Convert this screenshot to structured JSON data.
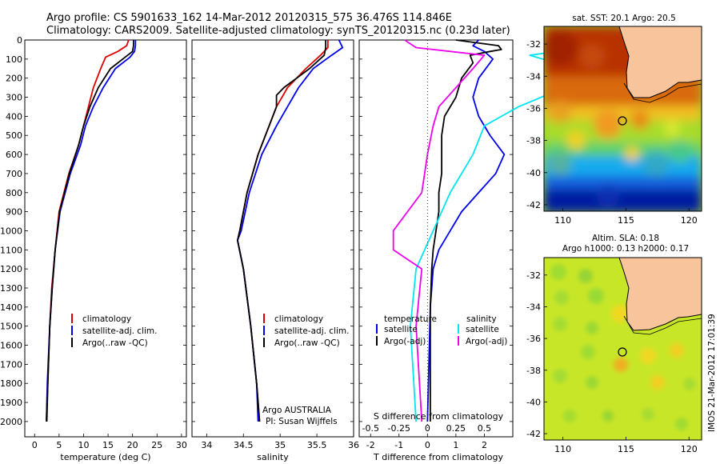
{
  "header": {
    "line1": "Argo profile: CS 5901633_162 14-Mar-2012 20120315_575 36.476S 114.846E",
    "line2": "Climatology: CARS2009. Satellite-adjusted climatology: synTS_20120315.nc (0.23d later)"
  },
  "colors": {
    "climatology": "#dd0000",
    "satellite": "#0000ee",
    "argo": "#000000",
    "sat_salinity": "#00e5ee",
    "argo_salinity": "#ee00ee"
  },
  "chart_data": [
    {
      "type": "line",
      "xlabel": "temperature (deg C)",
      "ylabel": "",
      "xlim": [
        -2,
        31
      ],
      "ylim": [
        2080,
        0
      ],
      "xticks": [
        "0",
        "5",
        "10",
        "15",
        "20",
        "25",
        "30"
      ],
      "yticks": [
        "0",
        "100",
        "200",
        "300",
        "400",
        "500",
        "600",
        "700",
        "800",
        "900",
        "1000",
        "1100",
        "1200",
        "1300",
        "1400",
        "1500",
        "1600",
        "1700",
        "1800",
        "1900",
        "2000"
      ],
      "legend": [
        "climatology",
        "satellite-adj. clim.",
        "Argo(..raw -QC)"
      ],
      "series": [
        {
          "name": "climatology",
          "depth": [
            0,
            30,
            60,
            90,
            150,
            250,
            350,
            450,
            550,
            700,
            900,
            1100,
            1300,
            1500,
            1800,
            2000
          ],
          "values": [
            19.2,
            18.8,
            17,
            14.5,
            13.5,
            12,
            11,
            10,
            9,
            7,
            5,
            4.2,
            3.5,
            3.1,
            2.7,
            2.4
          ]
        },
        {
          "name": "satellite-adj. clim.",
          "depth": [
            0,
            30,
            60,
            90,
            150,
            250,
            350,
            450,
            550,
            700,
            900,
            1100,
            1300,
            1500,
            1800,
            2000
          ],
          "values": [
            20.6,
            20.6,
            20.4,
            19.5,
            16.5,
            14,
            12,
            10.4,
            9.4,
            7.3,
            5.2,
            4.2,
            3.6,
            3.1,
            2.6,
            2.4
          ]
        },
        {
          "name": "Argo(..raw -QC)",
          "depth": [
            0,
            30,
            60,
            90,
            150,
            250,
            350,
            450,
            550,
            700,
            900,
            1100,
            1300,
            1500,
            1800,
            2000
          ],
          "values": [
            20.2,
            20.2,
            20,
            18.5,
            15.5,
            13,
            11.3,
            10,
            9,
            7.1,
            5.1,
            4.2,
            3.6,
            3.1,
            2.7,
            2.5
          ]
        }
      ]
    },
    {
      "type": "line",
      "xlabel": "salinity",
      "ylabel": "",
      "xlim": [
        33.8,
        36.0
      ],
      "ylim": [
        2080,
        0
      ],
      "xticks": [
        "34",
        "34.5",
        "35",
        "35.5",
        "36"
      ],
      "legend": [
        "climatology",
        "satellite-adj. clim.",
        "Argo(..raw -QC)"
      ],
      "annotation": [
        "Argo AUSTRALIA",
        "PI: Susan Wijffels"
      ],
      "series": [
        {
          "name": "climatology",
          "depth": [
            0,
            40,
            80,
            150,
            250,
            350,
            450,
            600,
            800,
            1000,
            1050,
            1200,
            1500,
            1800,
            2000
          ],
          "values": [
            35.65,
            35.65,
            35.55,
            35.35,
            35.1,
            34.95,
            34.85,
            34.7,
            34.55,
            34.45,
            34.42,
            34.5,
            34.6,
            34.68,
            34.72
          ]
        },
        {
          "name": "satellite-adj. clim.",
          "depth": [
            0,
            40,
            80,
            150,
            250,
            350,
            450,
            600,
            800,
            1000,
            1050,
            1200,
            1500,
            1800,
            2000
          ],
          "values": [
            35.8,
            35.85,
            35.7,
            35.45,
            35.25,
            35.1,
            34.95,
            34.75,
            34.58,
            34.47,
            34.42,
            34.5,
            34.6,
            34.68,
            34.7
          ]
        },
        {
          "name": "Argo(..raw -QC)",
          "depth": [
            0,
            40,
            80,
            150,
            250,
            290,
            350,
            450,
            600,
            800,
            1000,
            1050,
            1200,
            1500,
            1800,
            2000
          ],
          "values": [
            35.62,
            35.62,
            35.6,
            35.4,
            35.05,
            34.95,
            34.95,
            34.85,
            34.7,
            34.55,
            34.45,
            34.42,
            34.5,
            34.6,
            34.68,
            34.72
          ]
        }
      ]
    },
    {
      "type": "line",
      "xlabel": "T difference from climatology",
      "xlabel2": "S difference from climatology",
      "xlim": [
        -2.4,
        3.0
      ],
      "xticks": [
        "-2",
        "-1",
        "0",
        "1",
        "2"
      ],
      "xticks_s": [
        "-0.5",
        "-0.25",
        "0",
        "0.25",
        "0.5"
      ],
      "ylim": [
        2080,
        0
      ],
      "legend": {
        "temperature": "temperature",
        "salinity": "salinity",
        "items": [
          "satellite",
          "Argo(-adj)",
          "satellite",
          "Argo(-adj)"
        ]
      },
      "series": [
        {
          "name": "temperature satellite",
          "depth": [
            0,
            30,
            60,
            100,
            200,
            300,
            400,
            500,
            600,
            700,
            800,
            900,
            1000,
            1100,
            1200,
            1400,
            2000
          ],
          "values": [
            1.8,
            1.6,
            2.0,
            2.3,
            1.8,
            1.6,
            1.8,
            2.2,
            2.7,
            2.4,
            1.8,
            1.2,
            0.8,
            0.4,
            0.2,
            0.1,
            0.0
          ]
        },
        {
          "name": "temperature Argo(-adj)",
          "depth": [
            0,
            30,
            50,
            60,
            80,
            120,
            200,
            300,
            400,
            500,
            600,
            700,
            800,
            900,
            1000,
            1100,
            1200,
            1400,
            2000
          ],
          "values": [
            1.0,
            2.5,
            2.6,
            2.2,
            1.5,
            1.6,
            1.2,
            1.0,
            0.6,
            0.5,
            0.5,
            0.5,
            0.4,
            0.4,
            0.3,
            0.2,
            0.15,
            0.1,
            0.1
          ]
        },
        {
          "name": "salinity satellite",
          "depth": [
            0,
            30,
            80,
            150,
            250,
            350,
            450,
            600,
            800,
            1000,
            1200,
            1500,
            2000
          ],
          "values": [
            1.3,
            1.5,
            0.9,
            1.3,
            1.2,
            0.8,
            0.5,
            0.4,
            0.2,
            0.05,
            -0.1,
            -0.15,
            -0.1
          ]
        },
        {
          "name": "salinity Argo(-adj)",
          "depth": [
            0,
            40,
            80,
            150,
            250,
            350,
            450,
            600,
            800,
            1000,
            1100,
            1200,
            1500,
            2000
          ],
          "values": [
            -0.2,
            -0.1,
            0.5,
            0.4,
            0.25,
            0.1,
            0.05,
            0.0,
            -0.05,
            -0.3,
            -0.3,
            -0.05,
            -0.1,
            -0.05
          ]
        }
      ]
    },
    {
      "type": "heatmap",
      "title": "sat. SST: 20.1 Argo: 20.5",
      "xticks": [
        "110",
        "115",
        "120"
      ],
      "yticks": [
        "-32",
        "-34",
        "-36",
        "-38",
        "-40",
        "-42"
      ],
      "xlim": [
        108.5,
        121
      ],
      "ylim": [
        -42.4,
        -30.9
      ],
      "marker": [
        114.846,
        -36.476
      ]
    },
    {
      "type": "heatmap",
      "title": "Altim. SLA: 0.18",
      "subtitle": "Argo h1000: 0.13 h2000: 0.17",
      "xticks": [
        "110",
        "115",
        "120"
      ],
      "yticks": [
        "-32",
        "-34",
        "-36",
        "-38",
        "-40",
        "-42"
      ],
      "xlim": [
        108.5,
        121
      ],
      "ylim": [
        -42.4,
        -30.9
      ],
      "marker": [
        114.846,
        -36.476
      ]
    }
  ],
  "side_caption": "IMOS 21-Mar-2012 17:01:39"
}
